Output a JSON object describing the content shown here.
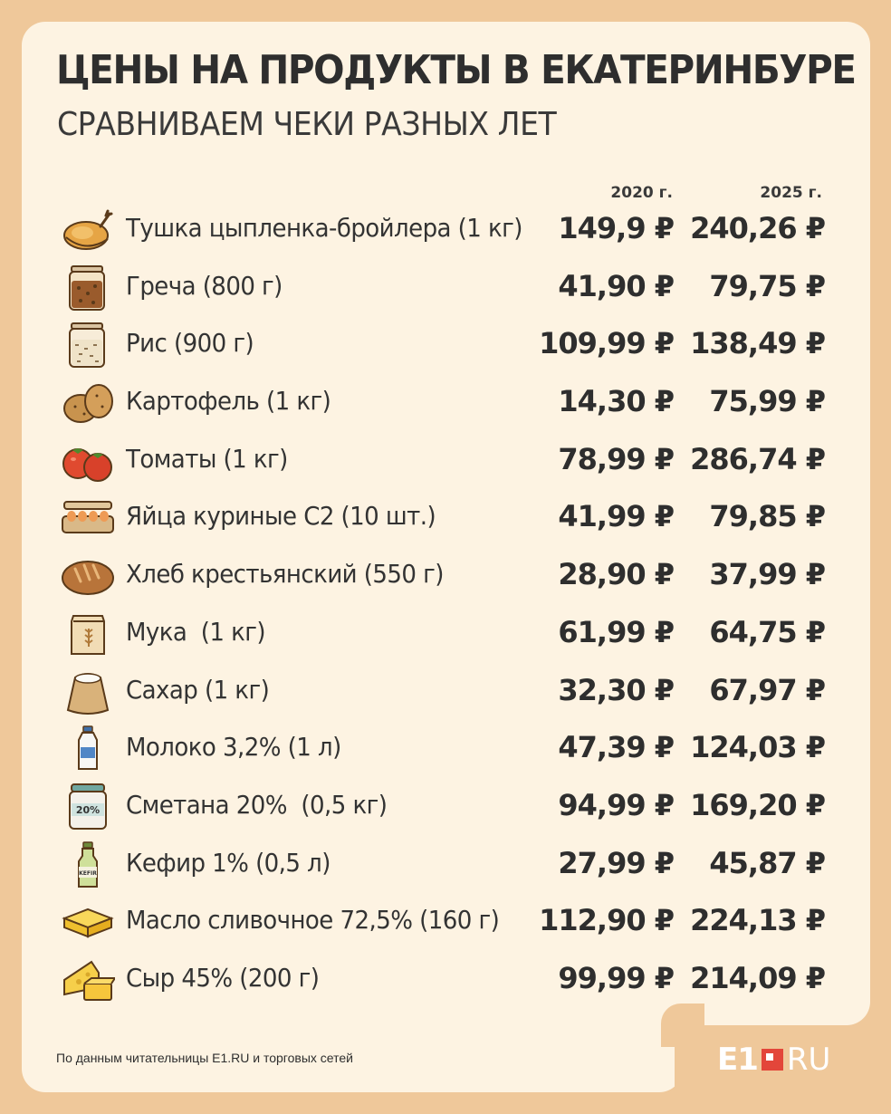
{
  "header": {
    "title": "ЦЕНЫ НА ПРОДУКТЫ В ЕКАТЕРИНБУРЕ",
    "subtitle": "СРАВНИВАЕМ ЧЕКИ РАЗНЫХ ЛЕТ"
  },
  "columns": {
    "year1": "2020 г.",
    "year2": "2025 г."
  },
  "items": [
    {
      "icon": "roast-chicken-icon",
      "name": "Тушка цыпленка-бройлера (1 кг)",
      "p2020": "149,9 ₽",
      "p2025": "240,26 ₽"
    },
    {
      "icon": "buckwheat-jar-icon",
      "name": "Греча (800 г)",
      "p2020": "41,90 ₽",
      "p2025": "79,75 ₽"
    },
    {
      "icon": "rice-jar-icon",
      "name": "Рис (900 г)",
      "p2020": "109,99 ₽",
      "p2025": "138,49 ₽"
    },
    {
      "icon": "potato-icon",
      "name": "Картофель (1 кг)",
      "p2020": "14,30 ₽",
      "p2025": "75,99 ₽"
    },
    {
      "icon": "tomato-icon",
      "name": "Томаты (1 кг)",
      "p2020": "78,99 ₽",
      "p2025": "286,74 ₽"
    },
    {
      "icon": "egg-carton-icon",
      "name": "Яйца куриные С2 (10 шт.)",
      "p2020": "41,99 ₽",
      "p2025": "79,85 ₽"
    },
    {
      "icon": "bread-loaf-icon",
      "name": "Хлеб крестьянский (550 г)",
      "p2020": "28,90 ₽",
      "p2025": "37,99 ₽"
    },
    {
      "icon": "flour-bag-icon",
      "name": "Мука  (1 кг)",
      "p2020": "61,99 ₽",
      "p2025": "64,75 ₽"
    },
    {
      "icon": "sugar-sack-icon",
      "name": "Сахар (1 кг)",
      "p2020": "32,30 ₽",
      "p2025": "67,97 ₽"
    },
    {
      "icon": "milk-bottle-icon",
      "name": "Молоко 3,2% (1 л)",
      "p2020": "47,39 ₽",
      "p2025": "124,03 ₽"
    },
    {
      "icon": "sour-cream-jar-icon",
      "name": "Сметана 20%  (0,5 кг)",
      "p2020": "94,99 ₽",
      "p2025": "169,20 ₽"
    },
    {
      "icon": "kefir-bottle-icon",
      "name": "Кефир 1% (0,5 л)",
      "p2020": "27,99 ₽",
      "p2025": "45,87 ₽"
    },
    {
      "icon": "butter-icon",
      "name": "Масло сливочное 72,5% (160 г)",
      "p2020": "112,90 ₽",
      "p2025": "224,13 ₽"
    },
    {
      "icon": "cheese-icon",
      "name": "Сыр 45% (200 г)",
      "p2020": "99,99 ₽",
      "p2025": "214,09 ₽"
    }
  ],
  "icon_labels": {
    "sour_cream": "20%",
    "kefir": "KEFIR"
  },
  "footer": {
    "source": "По данным читательницы E1.RU и торговых сетей",
    "logo_e1": "E1",
    "logo_ru": "RU"
  },
  "colors": {
    "background": "#efc89a",
    "card": "#fdf3e2",
    "text": "#2e2e2e",
    "logo_accent": "#e3463a"
  }
}
